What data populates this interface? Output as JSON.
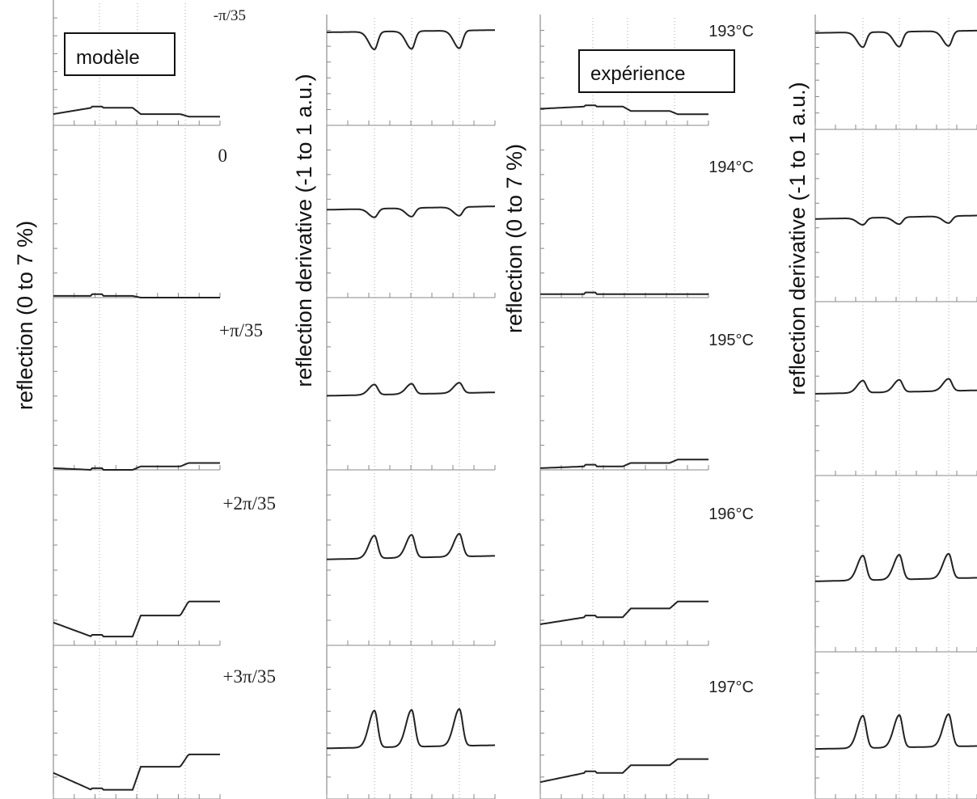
{
  "chart_data": [
    {
      "type": "line",
      "legend_box": "modèle",
      "ylabel": "reflection (0 to 7 %)",
      "panels": [
        {
          "label": "-π/35",
          "baseline": 0.09,
          "steps": [
            0.14,
            0.09,
            0.07
          ],
          "dips": false
        },
        {
          "label": "0",
          "baseline": 0.01,
          "steps": [
            0.01,
            0.0,
            0.0
          ],
          "dips": false
        },
        {
          "label": "+π/35",
          "baseline": 0.01,
          "steps": [
            0.0,
            0.02,
            0.04
          ],
          "dips": false
        },
        {
          "label": "+2π/35",
          "baseline": 0.13,
          "steps": [
            0.05,
            0.17,
            0.25
          ],
          "dips": false
        },
        {
          "label": "+3π/35",
          "baseline": 0.17,
          "steps": [
            0.06,
            0.21,
            0.29
          ],
          "dips": false
        }
      ]
    },
    {
      "type": "line",
      "ylabel": "reflection derivative (-1 to 1 a.u.)",
      "panels": [
        {
          "label": "",
          "baseline": 0.84,
          "amp": -0.16
        },
        {
          "label": "",
          "baseline": 0.51,
          "amp": -0.05
        },
        {
          "label": "",
          "baseline": 0.43,
          "amp": 0.06
        },
        {
          "label": "",
          "baseline": 0.49,
          "amp": 0.13
        },
        {
          "label": "",
          "baseline": 0.33,
          "amp": 0.24
        }
      ]
    },
    {
      "type": "line",
      "legend_box": "expérience",
      "ylabel": "reflection (0 to 7 %)",
      "panels": [
        {
          "label": "193°C",
          "baseline": 0.15,
          "steps": [
            0.17,
            0.13,
            0.1
          ]
        },
        {
          "label": "194°C",
          "baseline": 0.02,
          "steps": [
            0.02,
            0.02,
            0.02
          ]
        },
        {
          "label": "195°C",
          "baseline": 0.01,
          "steps": [
            0.02,
            0.04,
            0.06
          ]
        },
        {
          "label": "196°C",
          "baseline": 0.12,
          "steps": [
            0.16,
            0.21,
            0.25
          ]
        },
        {
          "label": "197°C",
          "baseline": 0.11,
          "steps": [
            0.17,
            0.22,
            0.26
          ]
        }
      ]
    },
    {
      "type": "line",
      "ylabel": "reflection derivative (-1 to 1 a.u.)",
      "panels": [
        {
          "label": "",
          "baseline": 0.84,
          "amp": -0.13
        },
        {
          "label": "",
          "baseline": 0.48,
          "amp": -0.04
        },
        {
          "label": "",
          "baseline": 0.47,
          "amp": 0.07
        },
        {
          "label": "",
          "baseline": 0.4,
          "amp": 0.14
        },
        {
          "label": "",
          "baseline": 0.34,
          "amp": 0.22
        }
      ]
    }
  ]
}
